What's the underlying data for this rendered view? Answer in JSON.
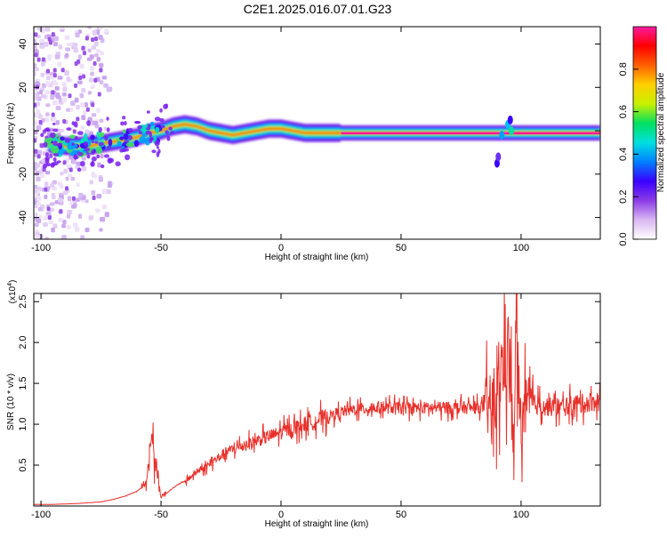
{
  "title": "C2E1.2025.016.07.01.G23",
  "chart_data": [
    {
      "type": "heatmap",
      "xlabel": "Height of straight line (km)",
      "ylabel": "Frequency (Hz)",
      "xlim": [
        -103,
        133
      ],
      "ylim": [
        -50,
        48
      ],
      "x_ticks": [
        -100,
        -50,
        0,
        50,
        100
      ],
      "y_ticks": [
        -40,
        -20,
        0,
        20,
        40
      ],
      "colorbar": {
        "label": "Normalized spectral amplitude",
        "range": [
          0,
          1
        ],
        "ticks": [
          "0.0",
          "0.2",
          "0.4",
          "0.6",
          "0.8"
        ],
        "colors": [
          "#ffffff",
          "#d9b8f2",
          "#8c3ce6",
          "#3a00ff",
          "#0080ff",
          "#00e0e0",
          "#00e060",
          "#c8f000",
          "#ffd000",
          "#ff6000",
          "#ff0000",
          "#ff1aa0"
        ]
      },
      "ridge": {
        "x": [
          -97,
          -90,
          -85,
          -80,
          -75,
          -70,
          -65,
          -60,
          -55,
          -50,
          -45,
          -40,
          -35,
          -30,
          -25,
          -20,
          -15,
          -10,
          -5,
          0,
          5,
          10,
          15,
          20,
          30,
          50,
          70,
          85,
          90,
          95,
          100,
          133
        ],
        "y": [
          -6,
          -7,
          -7,
          -7,
          -6,
          -5,
          -4,
          -3,
          -1,
          0,
          2,
          3,
          2,
          0,
          -1,
          -2,
          -1,
          0,
          1,
          1,
          0,
          -1,
          -1,
          -1,
          -1,
          -1,
          -1,
          -1,
          -1,
          -1,
          -1,
          -1
        ]
      }
    },
    {
      "type": "line",
      "xlabel": "Height of straight line (km)",
      "ylabel": "SNR (10 * v/v)",
      "y_multiplier": "(x10^4)",
      "y_multiplier_base": "(x10",
      "y_multiplier_exp": "4",
      "y_multiplier_close": ")",
      "xlim": [
        -103,
        133
      ],
      "ylim": [
        0,
        2.6
      ],
      "x_ticks": [
        -100,
        -50,
        0,
        50,
        100
      ],
      "y_ticks": [
        "0.5",
        "1.0",
        "1.5",
        "2.0",
        "2.5"
      ],
      "series": [
        {
          "color": "#e8302a",
          "x": [
            -103,
            -95,
            -85,
            -75,
            -70,
            -65,
            -60,
            -57,
            -55,
            -54,
            -53,
            -52,
            -51,
            -50,
            -48,
            -45,
            -42,
            -40,
            -35,
            -30,
            -25,
            -20,
            -15,
            -10,
            -5,
            0,
            5,
            10,
            15,
            20,
            25,
            30,
            40,
            50,
            60,
            70,
            80,
            88,
            90,
            92,
            94,
            96,
            97,
            98,
            99,
            100,
            101,
            102,
            105,
            110,
            115,
            120,
            125,
            130,
            133
          ],
          "y": [
            0.02,
            0.02,
            0.03,
            0.05,
            0.08,
            0.12,
            0.18,
            0.25,
            0.5,
            0.93,
            0.65,
            0.5,
            0.25,
            0.12,
            0.15,
            0.22,
            0.28,
            0.3,
            0.42,
            0.5,
            0.62,
            0.7,
            0.75,
            0.8,
            0.85,
            0.9,
            0.95,
            1.0,
            1.05,
            1.1,
            1.15,
            1.18,
            1.2,
            1.2,
            1.2,
            1.2,
            1.2,
            1.22,
            1.25,
            1.7,
            2.0,
            1.5,
            0.4,
            2.58,
            1.4,
            1.0,
            1.1,
            1.2,
            1.25,
            1.22,
            1.2,
            1.22,
            1.25,
            1.28,
            1.28
          ]
        }
      ]
    }
  ]
}
